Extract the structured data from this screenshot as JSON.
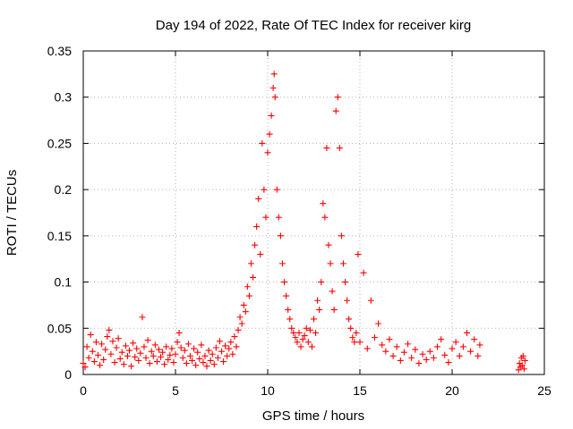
{
  "chart_data": {
    "type": "scatter",
    "title": "Day 194 of 2022, Rate Of TEC Index for receiver kirg",
    "xlabel": "GPS time / hours",
    "ylabel": "ROTI / TECUs",
    "xlim": [
      0,
      25
    ],
    "ylim": [
      0,
      0.35
    ],
    "xticks": [
      0,
      5,
      10,
      15,
      20,
      25
    ],
    "yticks": [
      0,
      0.05,
      0.1,
      0.15,
      0.2,
      0.25,
      0.3,
      0.35
    ],
    "xtick_labels": [
      "0",
      "5",
      "10",
      "15",
      "20",
      "25"
    ],
    "ytick_labels": [
      "0",
      "0.05",
      "0.1",
      "0.15",
      "0.2",
      "0.25",
      "0.3",
      "0.35"
    ],
    "grid": true,
    "marker": "plus",
    "color": "#ff0000",
    "series": [
      {
        "points": [
          [
            0.0,
            0.012
          ],
          [
            0.1,
            0.008
          ],
          [
            0.2,
            0.03
          ],
          [
            0.3,
            0.018
          ],
          [
            0.4,
            0.043
          ],
          [
            0.5,
            0.025
          ],
          [
            0.6,
            0.014
          ],
          [
            0.7,
            0.035
          ],
          [
            0.8,
            0.021
          ],
          [
            0.9,
            0.01
          ],
          [
            1.0,
            0.033
          ],
          [
            1.1,
            0.016
          ],
          [
            1.2,
            0.027
          ],
          [
            1.3,
            0.041
          ],
          [
            1.4,
            0.048
          ],
          [
            1.5,
            0.022
          ],
          [
            1.6,
            0.036
          ],
          [
            1.7,
            0.013
          ],
          [
            1.8,
            0.029
          ],
          [
            1.9,
            0.039
          ],
          [
            2.0,
            0.017
          ],
          [
            2.1,
            0.024
          ],
          [
            2.2,
            0.011
          ],
          [
            2.3,
            0.031
          ],
          [
            2.4,
            0.02
          ],
          [
            2.5,
            0.026
          ],
          [
            2.6,
            0.009
          ],
          [
            2.7,
            0.034
          ],
          [
            2.8,
            0.019
          ],
          [
            2.9,
            0.028
          ],
          [
            3.0,
            0.015
          ],
          [
            3.1,
            0.023
          ],
          [
            3.2,
            0.062
          ],
          [
            3.3,
            0.03
          ],
          [
            3.4,
            0.018
          ],
          [
            3.5,
            0.037
          ],
          [
            3.6,
            0.012
          ],
          [
            3.7,
            0.025
          ],
          [
            3.8,
            0.02
          ],
          [
            3.9,
            0.032
          ],
          [
            4.0,
            0.014
          ],
          [
            4.1,
            0.027
          ],
          [
            4.2,
            0.019
          ],
          [
            4.3,
            0.024
          ],
          [
            4.4,
            0.011
          ],
          [
            4.5,
            0.03
          ],
          [
            4.6,
            0.016
          ],
          [
            4.7,
            0.021
          ],
          [
            4.8,
            0.028
          ],
          [
            4.9,
            0.013
          ],
          [
            5.0,
            0.022
          ],
          [
            5.1,
            0.035
          ],
          [
            5.2,
            0.045
          ],
          [
            5.3,
            0.029
          ],
          [
            5.4,
            0.018
          ],
          [
            5.5,
            0.026
          ],
          [
            5.6,
            0.012
          ],
          [
            5.7,
            0.033
          ],
          [
            5.8,
            0.02
          ],
          [
            5.9,
            0.015
          ],
          [
            6.0,
            0.028
          ],
          [
            6.1,
            0.01
          ],
          [
            6.2,
            0.024
          ],
          [
            6.3,
            0.017
          ],
          [
            6.4,
            0.032
          ],
          [
            6.5,
            0.013
          ],
          [
            6.6,
            0.02
          ],
          [
            6.7,
            0.009
          ],
          [
            6.8,
            0.026
          ],
          [
            6.9,
            0.015
          ],
          [
            7.0,
            0.022
          ],
          [
            7.1,
            0.011
          ],
          [
            7.2,
            0.029
          ],
          [
            7.3,
            0.018
          ],
          [
            7.4,
            0.036
          ],
          [
            7.5,
            0.025
          ],
          [
            7.6,
            0.014
          ],
          [
            7.7,
            0.031
          ],
          [
            7.8,
            0.02
          ],
          [
            7.9,
            0.028
          ],
          [
            8.0,
            0.035
          ],
          [
            8.1,
            0.022
          ],
          [
            8.2,
            0.041
          ],
          [
            8.3,
            0.03
          ],
          [
            8.4,
            0.048
          ],
          [
            8.5,
            0.062
          ],
          [
            8.6,
            0.055
          ],
          [
            8.7,
            0.075
          ],
          [
            8.8,
            0.068
          ],
          [
            8.9,
            0.095
          ],
          [
            9.0,
            0.085
          ],
          [
            9.1,
            0.12
          ],
          [
            9.2,
            0.105
          ],
          [
            9.3,
            0.14
          ],
          [
            9.4,
            0.16
          ],
          [
            9.5,
            0.19
          ],
          [
            9.6,
            0.13
          ],
          [
            9.7,
            0.25
          ],
          [
            9.8,
            0.2
          ],
          [
            9.9,
            0.17
          ],
          [
            10.0,
            0.24
          ],
          [
            10.1,
            0.26
          ],
          [
            10.2,
            0.28
          ],
          [
            10.3,
            0.31
          ],
          [
            10.35,
            0.325
          ],
          [
            10.4,
            0.3
          ],
          [
            10.5,
            0.2
          ],
          [
            10.6,
            0.17
          ],
          [
            10.7,
            0.15
          ],
          [
            10.8,
            0.12
          ],
          [
            10.9,
            0.1
          ],
          [
            11.0,
            0.085
          ],
          [
            11.1,
            0.07
          ],
          [
            11.2,
            0.06
          ],
          [
            11.3,
            0.05
          ],
          [
            11.4,
            0.045
          ],
          [
            11.5,
            0.04
          ],
          [
            11.6,
            0.035
          ],
          [
            11.7,
            0.045
          ],
          [
            11.8,
            0.03
          ],
          [
            11.9,
            0.038
          ],
          [
            12.0,
            0.042
          ],
          [
            12.1,
            0.05
          ],
          [
            12.2,
            0.035
          ],
          [
            12.3,
            0.048
          ],
          [
            12.4,
            0.03
          ],
          [
            12.5,
            0.06
          ],
          [
            12.6,
            0.045
          ],
          [
            12.7,
            0.08
          ],
          [
            12.8,
            0.07
          ],
          [
            12.9,
            0.1
          ],
          [
            13.0,
            0.185
          ],
          [
            13.1,
            0.17
          ],
          [
            13.2,
            0.245
          ],
          [
            13.3,
            0.14
          ],
          [
            13.4,
            0.12
          ],
          [
            13.5,
            0.09
          ],
          [
            13.6,
            0.07
          ],
          [
            13.7,
            0.285
          ],
          [
            13.8,
            0.3
          ],
          [
            13.9,
            0.245
          ],
          [
            14.0,
            0.15
          ],
          [
            14.1,
            0.12
          ],
          [
            14.2,
            0.1
          ],
          [
            14.3,
            0.08
          ],
          [
            14.4,
            0.06
          ],
          [
            14.5,
            0.05
          ],
          [
            14.6,
            0.04
          ],
          [
            14.7,
            0.035
          ],
          [
            14.8,
            0.045
          ],
          [
            14.9,
            0.13
          ],
          [
            15.0,
            0.035
          ],
          [
            15.2,
            0.11
          ],
          [
            15.4,
            0.028
          ],
          [
            15.6,
            0.08
          ],
          [
            15.8,
            0.04
          ],
          [
            16.0,
            0.055
          ],
          [
            16.2,
            0.032
          ],
          [
            16.4,
            0.025
          ],
          [
            16.6,
            0.038
          ],
          [
            16.8,
            0.02
          ],
          [
            17.0,
            0.03
          ],
          [
            17.2,
            0.015
          ],
          [
            17.4,
            0.024
          ],
          [
            17.6,
            0.033
          ],
          [
            17.8,
            0.018
          ],
          [
            18.0,
            0.027
          ],
          [
            18.2,
            0.012
          ],
          [
            18.4,
            0.022
          ],
          [
            18.6,
            0.016
          ],
          [
            18.8,
            0.025
          ],
          [
            19.0,
            0.018
          ],
          [
            19.2,
            0.03
          ],
          [
            19.4,
            0.038
          ],
          [
            19.6,
            0.021
          ],
          [
            19.8,
            0.013
          ],
          [
            20.0,
            0.028
          ],
          [
            20.2,
            0.035
          ],
          [
            20.4,
            0.02
          ],
          [
            20.6,
            0.03
          ],
          [
            20.8,
            0.045
          ],
          [
            21.0,
            0.025
          ],
          [
            21.2,
            0.038
          ],
          [
            21.4,
            0.02
          ],
          [
            21.5,
            0.032
          ],
          [
            23.6,
            0.005
          ],
          [
            23.65,
            0.012
          ],
          [
            23.7,
            0.008
          ],
          [
            23.75,
            0.018
          ],
          [
            23.8,
            0.01
          ],
          [
            23.85,
            0.02
          ],
          [
            23.9,
            0.006
          ],
          [
            23.95,
            0.015
          ]
        ]
      }
    ]
  }
}
